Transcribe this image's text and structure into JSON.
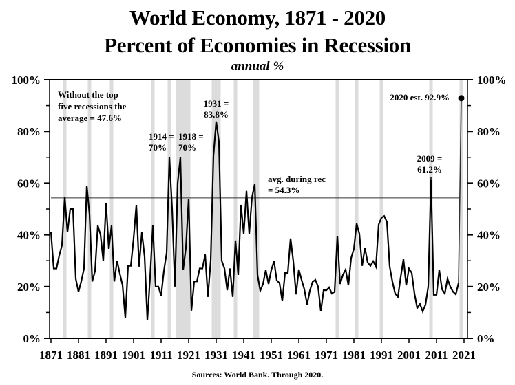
{
  "chart_data": {
    "type": "line",
    "title": "World Economy, 1871 - 2020",
    "subtitle": "Percent of Economies in Recession",
    "unit_label": "annual %",
    "xlabel": "",
    "ylabel": "",
    "ylim": [
      0,
      100
    ],
    "xlim": [
      1871,
      2022
    ],
    "y_ticks": [
      "0%",
      "20%",
      "40%",
      "60%",
      "80%",
      "100%"
    ],
    "y_tick_values": [
      0,
      20,
      40,
      60,
      80,
      100
    ],
    "y_minor_tick_values": [
      10,
      30,
      50,
      70,
      90
    ],
    "x_ticks": [
      "1871",
      "1881",
      "1891",
      "1901",
      "1911",
      "1921",
      "1931",
      "1941",
      "1951",
      "1961",
      "1971",
      "1981",
      "1991",
      "2001",
      "2011",
      "2021"
    ],
    "x_tick_values": [
      1871,
      1881,
      1891,
      1901,
      1911,
      1921,
      1931,
      1941,
      1951,
      1961,
      1971,
      1981,
      1991,
      2001,
      2011,
      2021
    ],
    "grid": false,
    "dual_y_axis": true,
    "series": [
      {
        "name": "Percent of economies in recession",
        "color": "#000000",
        "x": [
          1871,
          1872,
          1873,
          1874,
          1875,
          1876,
          1877,
          1878,
          1879,
          1880,
          1881,
          1882,
          1883,
          1884,
          1885,
          1886,
          1887,
          1888,
          1889,
          1890,
          1891,
          1892,
          1893,
          1894,
          1895,
          1896,
          1897,
          1898,
          1899,
          1900,
          1901,
          1902,
          1903,
          1904,
          1905,
          1906,
          1907,
          1908,
          1909,
          1910,
          1911,
          1912,
          1913,
          1914,
          1915,
          1916,
          1917,
          1918,
          1919,
          1920,
          1921,
          1922,
          1923,
          1924,
          1925,
          1926,
          1927,
          1928,
          1929,
          1930,
          1931,
          1932,
          1933,
          1934,
          1935,
          1936,
          1937,
          1938,
          1939,
          1940,
          1941,
          1942,
          1943,
          1944,
          1945,
          1946,
          1947,
          1948,
          1949,
          1950,
          1951,
          1952,
          1953,
          1954,
          1955,
          1956,
          1957,
          1958,
          1959,
          1960,
          1961,
          1962,
          1963,
          1964,
          1965,
          1966,
          1967,
          1968,
          1969,
          1970,
          1971,
          1972,
          1973,
          1974,
          1975,
          1976,
          1977,
          1978,
          1979,
          1980,
          1981,
          1982,
          1983,
          1984,
          1985,
          1986,
          1987,
          1988,
          1989,
          1990,
          1991,
          1992,
          1993,
          1994,
          1995,
          1996,
          1997,
          1998,
          1999,
          2000,
          2001,
          2002,
          2003,
          2004,
          2005,
          2006,
          2007,
          2008,
          2009,
          2010,
          2011,
          2012,
          2013,
          2014,
          2015,
          2016,
          2017,
          2018,
          2019,
          2020
        ],
        "values": [
          41,
          27,
          27,
          32,
          36,
          54.5,
          41,
          50,
          50,
          23,
          18,
          22,
          27,
          59,
          48,
          22,
          26,
          43.6,
          40,
          30,
          52.4,
          34.6,
          43.6,
          22,
          30,
          25,
          20.5,
          8,
          28,
          28,
          38.6,
          51.6,
          27.7,
          41,
          31.6,
          7,
          23.6,
          43.6,
          20,
          20,
          16.5,
          26,
          33,
          70,
          50,
          20,
          60,
          70,
          26.5,
          35,
          54,
          10.7,
          22,
          22,
          27,
          27,
          32.4,
          16,
          30,
          70.5,
          83.8,
          76,
          30,
          27,
          18.6,
          27,
          16,
          37.8,
          24.5,
          51.6,
          40.4,
          57,
          40.4,
          54.5,
          59.6,
          24.5,
          18.4,
          21,
          26.4,
          21,
          26.4,
          29.8,
          22.4,
          21.3,
          14.4,
          25.3,
          25.3,
          38.6,
          29.8,
          17,
          26.6,
          22.6,
          19,
          13,
          18.4,
          21.8,
          22.6,
          20,
          10.4,
          18.6,
          18.6,
          19.7,
          17.3,
          18,
          39.6,
          21,
          24.5,
          26.6,
          20.5,
          31,
          34.6,
          44.4,
          40.4,
          28,
          35,
          29.3,
          28,
          29.8,
          27.7,
          44,
          46.6,
          47.3,
          45,
          27.7,
          21.8,
          17.3,
          16,
          23.7,
          30.6,
          20.5,
          27,
          25.3,
          17.3,
          11.7,
          13.3,
          10.4,
          13,
          20,
          61.2,
          16.8,
          16.8,
          26.4,
          19,
          17.3,
          23,
          20,
          18,
          17,
          21.3,
          92.9
        ]
      }
    ],
    "reference_lines": [
      {
        "name": "avg. during rec",
        "value": 54.3,
        "label": "avg. during rec\n= 54.3%"
      }
    ],
    "recession_bands": [
      1876,
      1885,
      1893,
      1908,
      1914,
      [
        1917,
        1921
      ],
      [
        1930,
        1932
      ],
      1938,
      [
        1945,
        1946
      ],
      1975,
      1982,
      1991,
      2009,
      2020
    ],
    "band_color": "#dcdcdc",
    "annotations": [
      {
        "id": "note-top5",
        "lines": [
          "Without the top",
          "five recessions the",
          "average = 47.6%"
        ]
      },
      {
        "id": "note-1914",
        "lines": [
          "1914 =",
          "70%"
        ],
        "x": 1914,
        "y": 70
      },
      {
        "id": "note-1918",
        "lines": [
          "1918 =",
          "70%"
        ],
        "x": 1918,
        "y": 70
      },
      {
        "id": "note-1931",
        "lines": [
          "1931 =",
          "83.8%"
        ],
        "x": 1931,
        "y": 83.8
      },
      {
        "id": "note-avg",
        "lines": [
          "avg. during rec",
          "= 54.3%"
        ]
      },
      {
        "id": "note-2009",
        "lines": [
          "2009 =",
          "61.2%"
        ],
        "x": 2009,
        "y": 61.2
      },
      {
        "id": "note-2020",
        "lines": [
          "2020 est. 92.9%"
        ],
        "x": 2020,
        "y": 92.9
      }
    ],
    "source": "Sources: World Bank. Through 2020."
  }
}
